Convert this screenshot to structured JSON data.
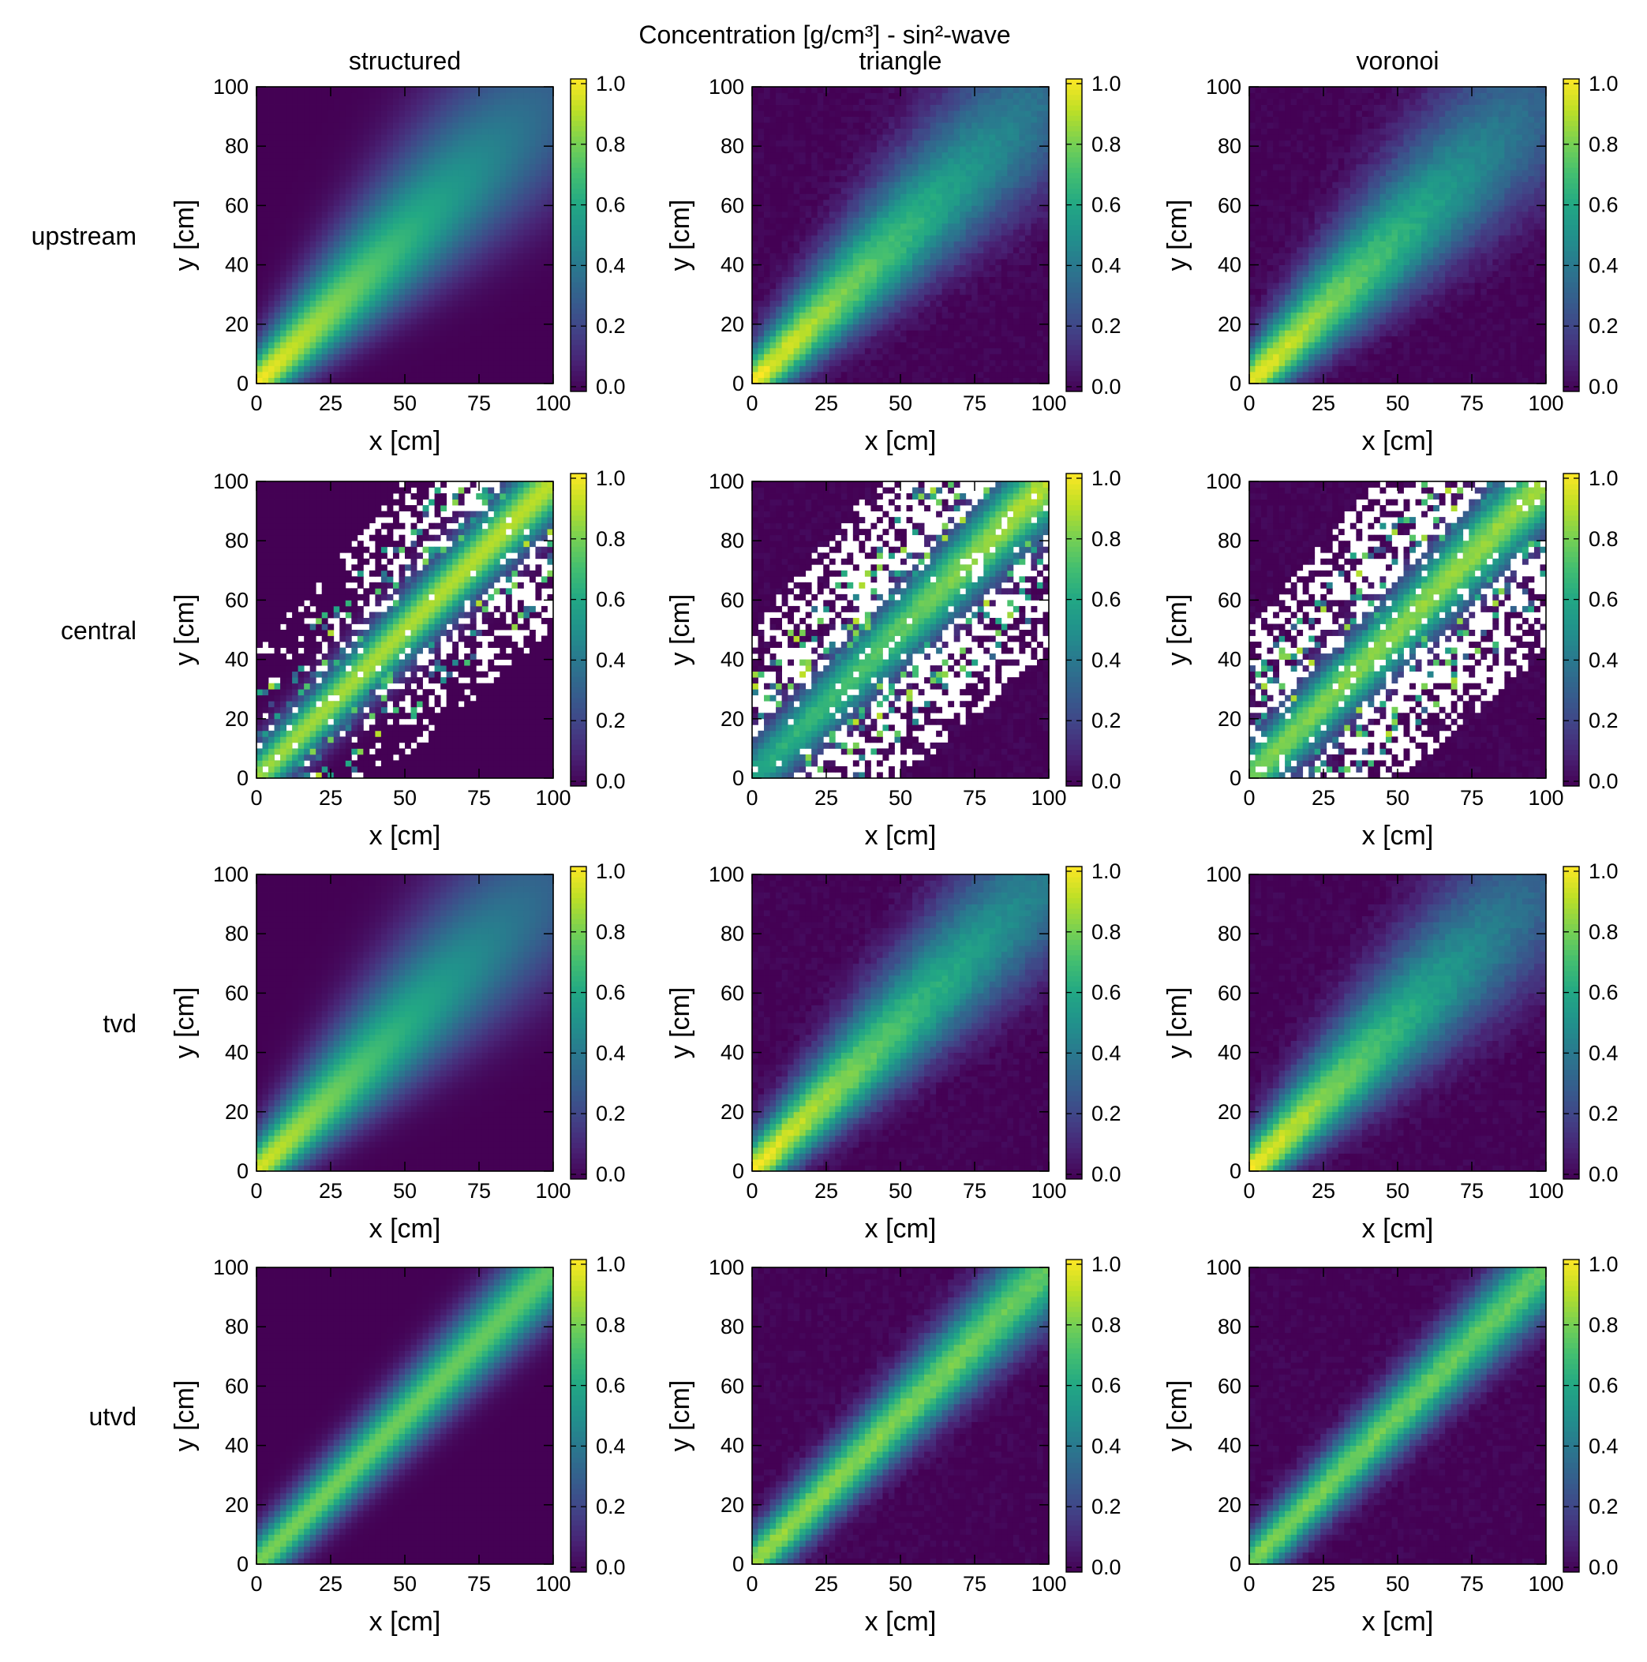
{
  "chart_data": {
    "type": "heatmap",
    "title": "Concentration [g/cm³] - sin²-wave",
    "columns": [
      "structured",
      "triangle",
      "voronoi"
    ],
    "rows": [
      "upstream",
      "central",
      "tvd",
      "utvd"
    ],
    "xlabel": "x [cm]",
    "ylabel": "y [cm]",
    "xlim": [
      0,
      100
    ],
    "ylim": [
      0,
      100
    ],
    "xticks": [
      "0",
      "25",
      "50",
      "75",
      "100"
    ],
    "yticks": [
      "0",
      "20",
      "40",
      "60",
      "80",
      "100"
    ],
    "colorbar": {
      "colormap": "viridis",
      "vmin": 0.0,
      "vmax": 1.0,
      "ticks": [
        "0.0",
        "0.2",
        "0.4",
        "0.6",
        "0.8",
        "1.0"
      ]
    },
    "description_of_field": "A sin²-wave concentration plume transported diagonally from the origin (0,0) toward (100,100). Upstream and tvd schemes show strong numerical dispersion (peak ~1.0 near origin decaying to ~0.3 at the far corner); utvd keeps a narrow band with peak ~0.75; central scheme shows oscillations with blank (out-of-range) regions, most severe on triangle and voronoi grids.",
    "panels": [
      {
        "row": "upstream",
        "column": "structured",
        "peak_near_origin": 1.0,
        "value_far_corner": 0.3,
        "band_halfwidth_start": 5,
        "band_halfwidth_end": 20,
        "undefined_regions": false
      },
      {
        "row": "upstream",
        "column": "triangle",
        "peak_near_origin": 1.0,
        "value_far_corner": 0.35,
        "band_halfwidth_start": 5,
        "band_halfwidth_end": 18,
        "undefined_regions": false
      },
      {
        "row": "upstream",
        "column": "voronoi",
        "peak_near_origin": 1.0,
        "value_far_corner": 0.3,
        "band_halfwidth_start": 5,
        "band_halfwidth_end": 19,
        "undefined_regions": false
      },
      {
        "row": "central",
        "column": "structured",
        "peak_near_origin": 0.85,
        "value_far_corner": 0.9,
        "band_halfwidth_start": 5,
        "band_halfwidth_end": 7,
        "undefined_regions": true
      },
      {
        "row": "central",
        "column": "triangle",
        "peak_near_origin": 0.6,
        "value_far_corner": 0.9,
        "band_halfwidth_start": 6,
        "band_halfwidth_end": 8,
        "undefined_regions": true
      },
      {
        "row": "central",
        "column": "voronoi",
        "peak_near_origin": 0.8,
        "value_far_corner": 0.85,
        "band_halfwidth_start": 6,
        "band_halfwidth_end": 8,
        "undefined_regions": true
      },
      {
        "row": "tvd",
        "column": "structured",
        "peak_near_origin": 0.95,
        "value_far_corner": 0.3,
        "band_halfwidth_start": 5,
        "band_halfwidth_end": 19,
        "undefined_regions": false
      },
      {
        "row": "tvd",
        "column": "triangle",
        "peak_near_origin": 1.0,
        "value_far_corner": 0.4,
        "band_halfwidth_start": 5,
        "band_halfwidth_end": 16,
        "undefined_regions": false
      },
      {
        "row": "tvd",
        "column": "voronoi",
        "peak_near_origin": 1.0,
        "value_far_corner": 0.3,
        "band_halfwidth_start": 5,
        "band_halfwidth_end": 18,
        "undefined_regions": false
      },
      {
        "row": "utvd",
        "column": "structured",
        "peak_near_origin": 0.8,
        "value_far_corner": 0.75,
        "band_halfwidth_start": 5,
        "band_halfwidth_end": 8,
        "undefined_regions": false
      },
      {
        "row": "utvd",
        "column": "triangle",
        "peak_near_origin": 0.85,
        "value_far_corner": 0.75,
        "band_halfwidth_start": 5,
        "band_halfwidth_end": 9,
        "undefined_regions": false
      },
      {
        "row": "utvd",
        "column": "voronoi",
        "peak_near_origin": 0.8,
        "value_far_corner": 0.75,
        "band_halfwidth_start": 5,
        "band_halfwidth_end": 8,
        "undefined_regions": false
      }
    ]
  }
}
